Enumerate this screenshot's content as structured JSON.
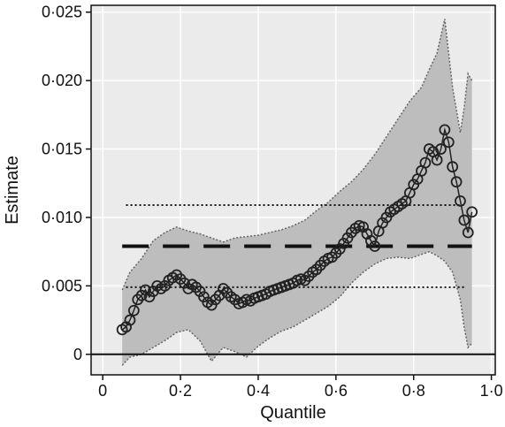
{
  "chart_data": {
    "type": "line",
    "xlabel": "Quantile",
    "ylabel": "Estimate",
    "xlim": [
      -0.03,
      1.01
    ],
    "ylim": [
      -0.0015,
      0.0255
    ],
    "xticks": [
      0,
      0.2,
      0.4,
      0.6,
      0.8,
      1.0
    ],
    "xtick_labels": [
      "0",
      "0·2",
      "0·4",
      "0·6",
      "0·8",
      "1·0"
    ],
    "yticks": [
      0,
      0.005,
      0.01,
      0.015,
      0.02,
      0.025
    ],
    "ytick_labels": [
      "0",
      "0·005",
      "0·010",
      "0·015",
      "0·020",
      "0·025"
    ],
    "grid": true,
    "background_color": "#ebebeb",
    "band_color": "#bdbdbd",
    "series": [
      {
        "style": "solid-circles",
        "x": [
          0.05,
          0.06,
          0.07,
          0.08,
          0.09,
          0.1,
          0.11,
          0.12,
          0.13,
          0.14,
          0.15,
          0.16,
          0.17,
          0.18,
          0.19,
          0.2,
          0.21,
          0.22,
          0.23,
          0.24,
          0.25,
          0.26,
          0.27,
          0.28,
          0.29,
          0.3,
          0.31,
          0.32,
          0.33,
          0.34,
          0.35,
          0.36,
          0.37,
          0.38,
          0.39,
          0.4,
          0.41,
          0.42,
          0.43,
          0.44,
          0.45,
          0.46,
          0.47,
          0.48,
          0.49,
          0.5,
          0.51,
          0.52,
          0.53,
          0.54,
          0.55,
          0.56,
          0.57,
          0.58,
          0.59,
          0.6,
          0.61,
          0.62,
          0.63,
          0.64,
          0.65,
          0.66,
          0.67,
          0.68,
          0.69,
          0.7,
          0.71,
          0.72,
          0.73,
          0.74,
          0.75,
          0.76,
          0.77,
          0.78,
          0.79,
          0.8,
          0.81,
          0.82,
          0.83,
          0.84,
          0.85,
          0.86,
          0.87,
          0.88,
          0.89,
          0.9,
          0.91,
          0.92,
          0.93,
          0.94,
          0.95
        ],
        "y": [
          0.0018,
          0.002,
          0.0025,
          0.0032,
          0.004,
          0.0043,
          0.0047,
          0.0042,
          0.0046,
          0.005,
          0.0048,
          0.005,
          0.0054,
          0.0056,
          0.0058,
          0.0055,
          0.0052,
          0.0048,
          0.0051,
          0.0049,
          0.0046,
          0.0042,
          0.0038,
          0.0036,
          0.004,
          0.0043,
          0.0048,
          0.0045,
          0.0042,
          0.004,
          0.0037,
          0.0038,
          0.004,
          0.0039,
          0.0041,
          0.0042,
          0.0043,
          0.0044,
          0.0046,
          0.0047,
          0.0048,
          0.0049,
          0.005,
          0.0051,
          0.0052,
          0.0054,
          0.0055,
          0.0054,
          0.0057,
          0.006,
          0.0062,
          0.0065,
          0.0068,
          0.007,
          0.0071,
          0.0074,
          0.0077,
          0.0081,
          0.0085,
          0.0089,
          0.0092,
          0.0094,
          0.0093,
          0.0088,
          0.0083,
          0.0079,
          0.009,
          0.0096,
          0.01,
          0.0104,
          0.0106,
          0.0108,
          0.011,
          0.0112,
          0.0118,
          0.0124,
          0.0128,
          0.0134,
          0.014,
          0.015,
          0.0148,
          0.0142,
          0.015,
          0.0164,
          0.0155,
          0.0137,
          0.0126,
          0.0112,
          0.0098,
          0.0089,
          0.0104
        ]
      },
      {
        "style": "dotted-band",
        "x": [
          0.05,
          0.07,
          0.1,
          0.13,
          0.16,
          0.19,
          0.22,
          0.25,
          0.28,
          0.31,
          0.34,
          0.37,
          0.4,
          0.43,
          0.46,
          0.49,
          0.52,
          0.55,
          0.58,
          0.61,
          0.64,
          0.67,
          0.7,
          0.73,
          0.76,
          0.79,
          0.82,
          0.84,
          0.86,
          0.88,
          0.9,
          0.92,
          0.93,
          0.94,
          0.95
        ],
        "upper": [
          0.0047,
          0.006,
          0.007,
          0.0083,
          0.0089,
          0.0093,
          0.009,
          0.0088,
          0.0085,
          0.0082,
          0.0085,
          0.0086,
          0.0087,
          0.0089,
          0.0091,
          0.0094,
          0.0098,
          0.0105,
          0.0111,
          0.0119,
          0.0126,
          0.0135,
          0.0146,
          0.0159,
          0.0172,
          0.0185,
          0.0195,
          0.0208,
          0.022,
          0.0245,
          0.0195,
          0.0162,
          0.018,
          0.0205,
          0.02
        ],
        "lower": [
          -0.0008,
          -0.0002,
          0.0,
          0.0005,
          0.001,
          0.0016,
          0.0018,
          0.001,
          -0.0005,
          0.0005,
          0.0002,
          -0.0002,
          0.0006,
          0.0012,
          0.0017,
          0.002,
          0.0025,
          0.003,
          0.0035,
          0.0042,
          0.0052,
          0.006,
          0.0066,
          0.007,
          0.0071,
          0.007,
          0.0073,
          0.0075,
          0.0072,
          0.0068,
          0.006,
          0.004,
          0.002,
          0.0005,
          0.0008
        ]
      }
    ],
    "reference_lines": [
      {
        "style": "dashed",
        "y": 0.0079,
        "x_start": 0.05,
        "x_end": 0.95
      },
      {
        "style": "dotted",
        "y": 0.0109,
        "x_start": 0.06,
        "x_end": 0.93
      },
      {
        "style": "dotted",
        "y": 0.0049,
        "x_start": 0.06,
        "x_end": 0.93
      }
    ]
  }
}
